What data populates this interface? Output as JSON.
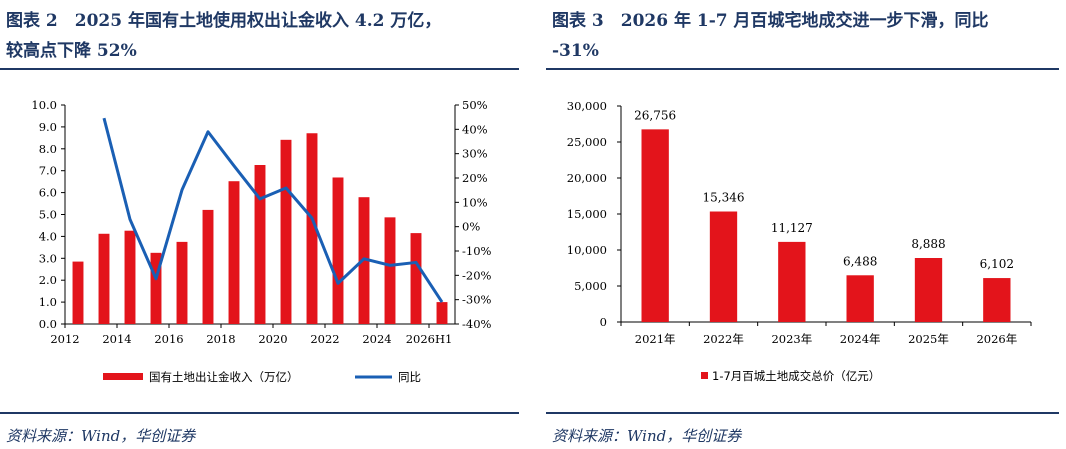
{
  "left": {
    "title": "图表 2　2025 年国有土地使用权出让金收入 4.2 万亿，较高点下降 52%",
    "title_line1": "图表 2　2025 年国有土地使用权出让金收入 4.2 万亿，",
    "title_line2": "较高点下降 52%",
    "source": "资料来源：Wind，华创证券"
  },
  "right": {
    "title": "图表 3　2026 年 1-7 月百城宅地成交进一步下滑，同比 -31%",
    "title_line1": "图表 3　2026 年 1-7 月百城宅地成交进一步下滑，同比",
    "title_line2": "-31%",
    "source": "资料来源：Wind，华创证券"
  },
  "colors": {
    "bar": "#e3141b",
    "line": "#1a5fb4",
    "title": "#1f3864",
    "axis": "#000000"
  },
  "chart_data": [
    {
      "type": "bar",
      "categories": [
        "2012",
        "2013",
        "2014",
        "2015",
        "2016",
        "2017",
        "2018",
        "2019",
        "2020",
        "2021",
        "2022",
        "2023",
        "2024",
        "2025",
        "2026H1"
      ],
      "x_tick_labels": [
        "2012",
        "2014",
        "2016",
        "2018",
        "2020",
        "2022",
        "2024",
        "2026H1"
      ],
      "series": [
        {
          "name": "国有土地出让金收入（万亿）",
          "type": "bar",
          "axis": "left",
          "values": [
            2.85,
            4.12,
            4.26,
            3.25,
            3.75,
            5.21,
            6.52,
            7.26,
            8.41,
            8.71,
            6.69,
            5.79,
            4.87,
            4.15,
            1.0
          ]
        },
        {
          "name": "同比",
          "type": "line",
          "axis": "right",
          "values": [
            null,
            44.6,
            3.0,
            -21.4,
            15.1,
            39.0,
            25.0,
            11.4,
            15.9,
            3.5,
            -23.3,
            -13.2,
            -15.9,
            -14.7,
            -31.0
          ]
        }
      ],
      "y_left": {
        "lim": [
          0,
          10
        ],
        "ticks": [
          "0.0",
          "1.0",
          "2.0",
          "3.0",
          "4.0",
          "5.0",
          "6.0",
          "7.0",
          "8.0",
          "9.0",
          "10.0"
        ]
      },
      "y_right": {
        "lim": [
          -40,
          50
        ],
        "ticks": [
          "-40%",
          "-30%",
          "-20%",
          "-10%",
          "0%",
          "10%",
          "20%",
          "30%",
          "40%",
          "50%"
        ]
      },
      "legend_position": "bottom",
      "grid": false
    },
    {
      "type": "bar",
      "categories": [
        "2021年",
        "2022年",
        "2023年",
        "2024年",
        "2025年",
        "2026年"
      ],
      "series": [
        {
          "name": "1-7月百城土地成交总价（亿元）",
          "values": [
            26756,
            15346,
            11127,
            6488,
            8888,
            6102
          ],
          "labels": [
            "26,756",
            "15,346",
            "11,127",
            "6,488",
            "8,888",
            "6,102"
          ]
        }
      ],
      "y": {
        "lim": [
          0,
          30000
        ],
        "ticks": [
          "0",
          "5,000",
          "10,000",
          "15,000",
          "20,000",
          "25,000",
          "30,000"
        ]
      },
      "legend_position": "bottom",
      "grid": false
    }
  ]
}
